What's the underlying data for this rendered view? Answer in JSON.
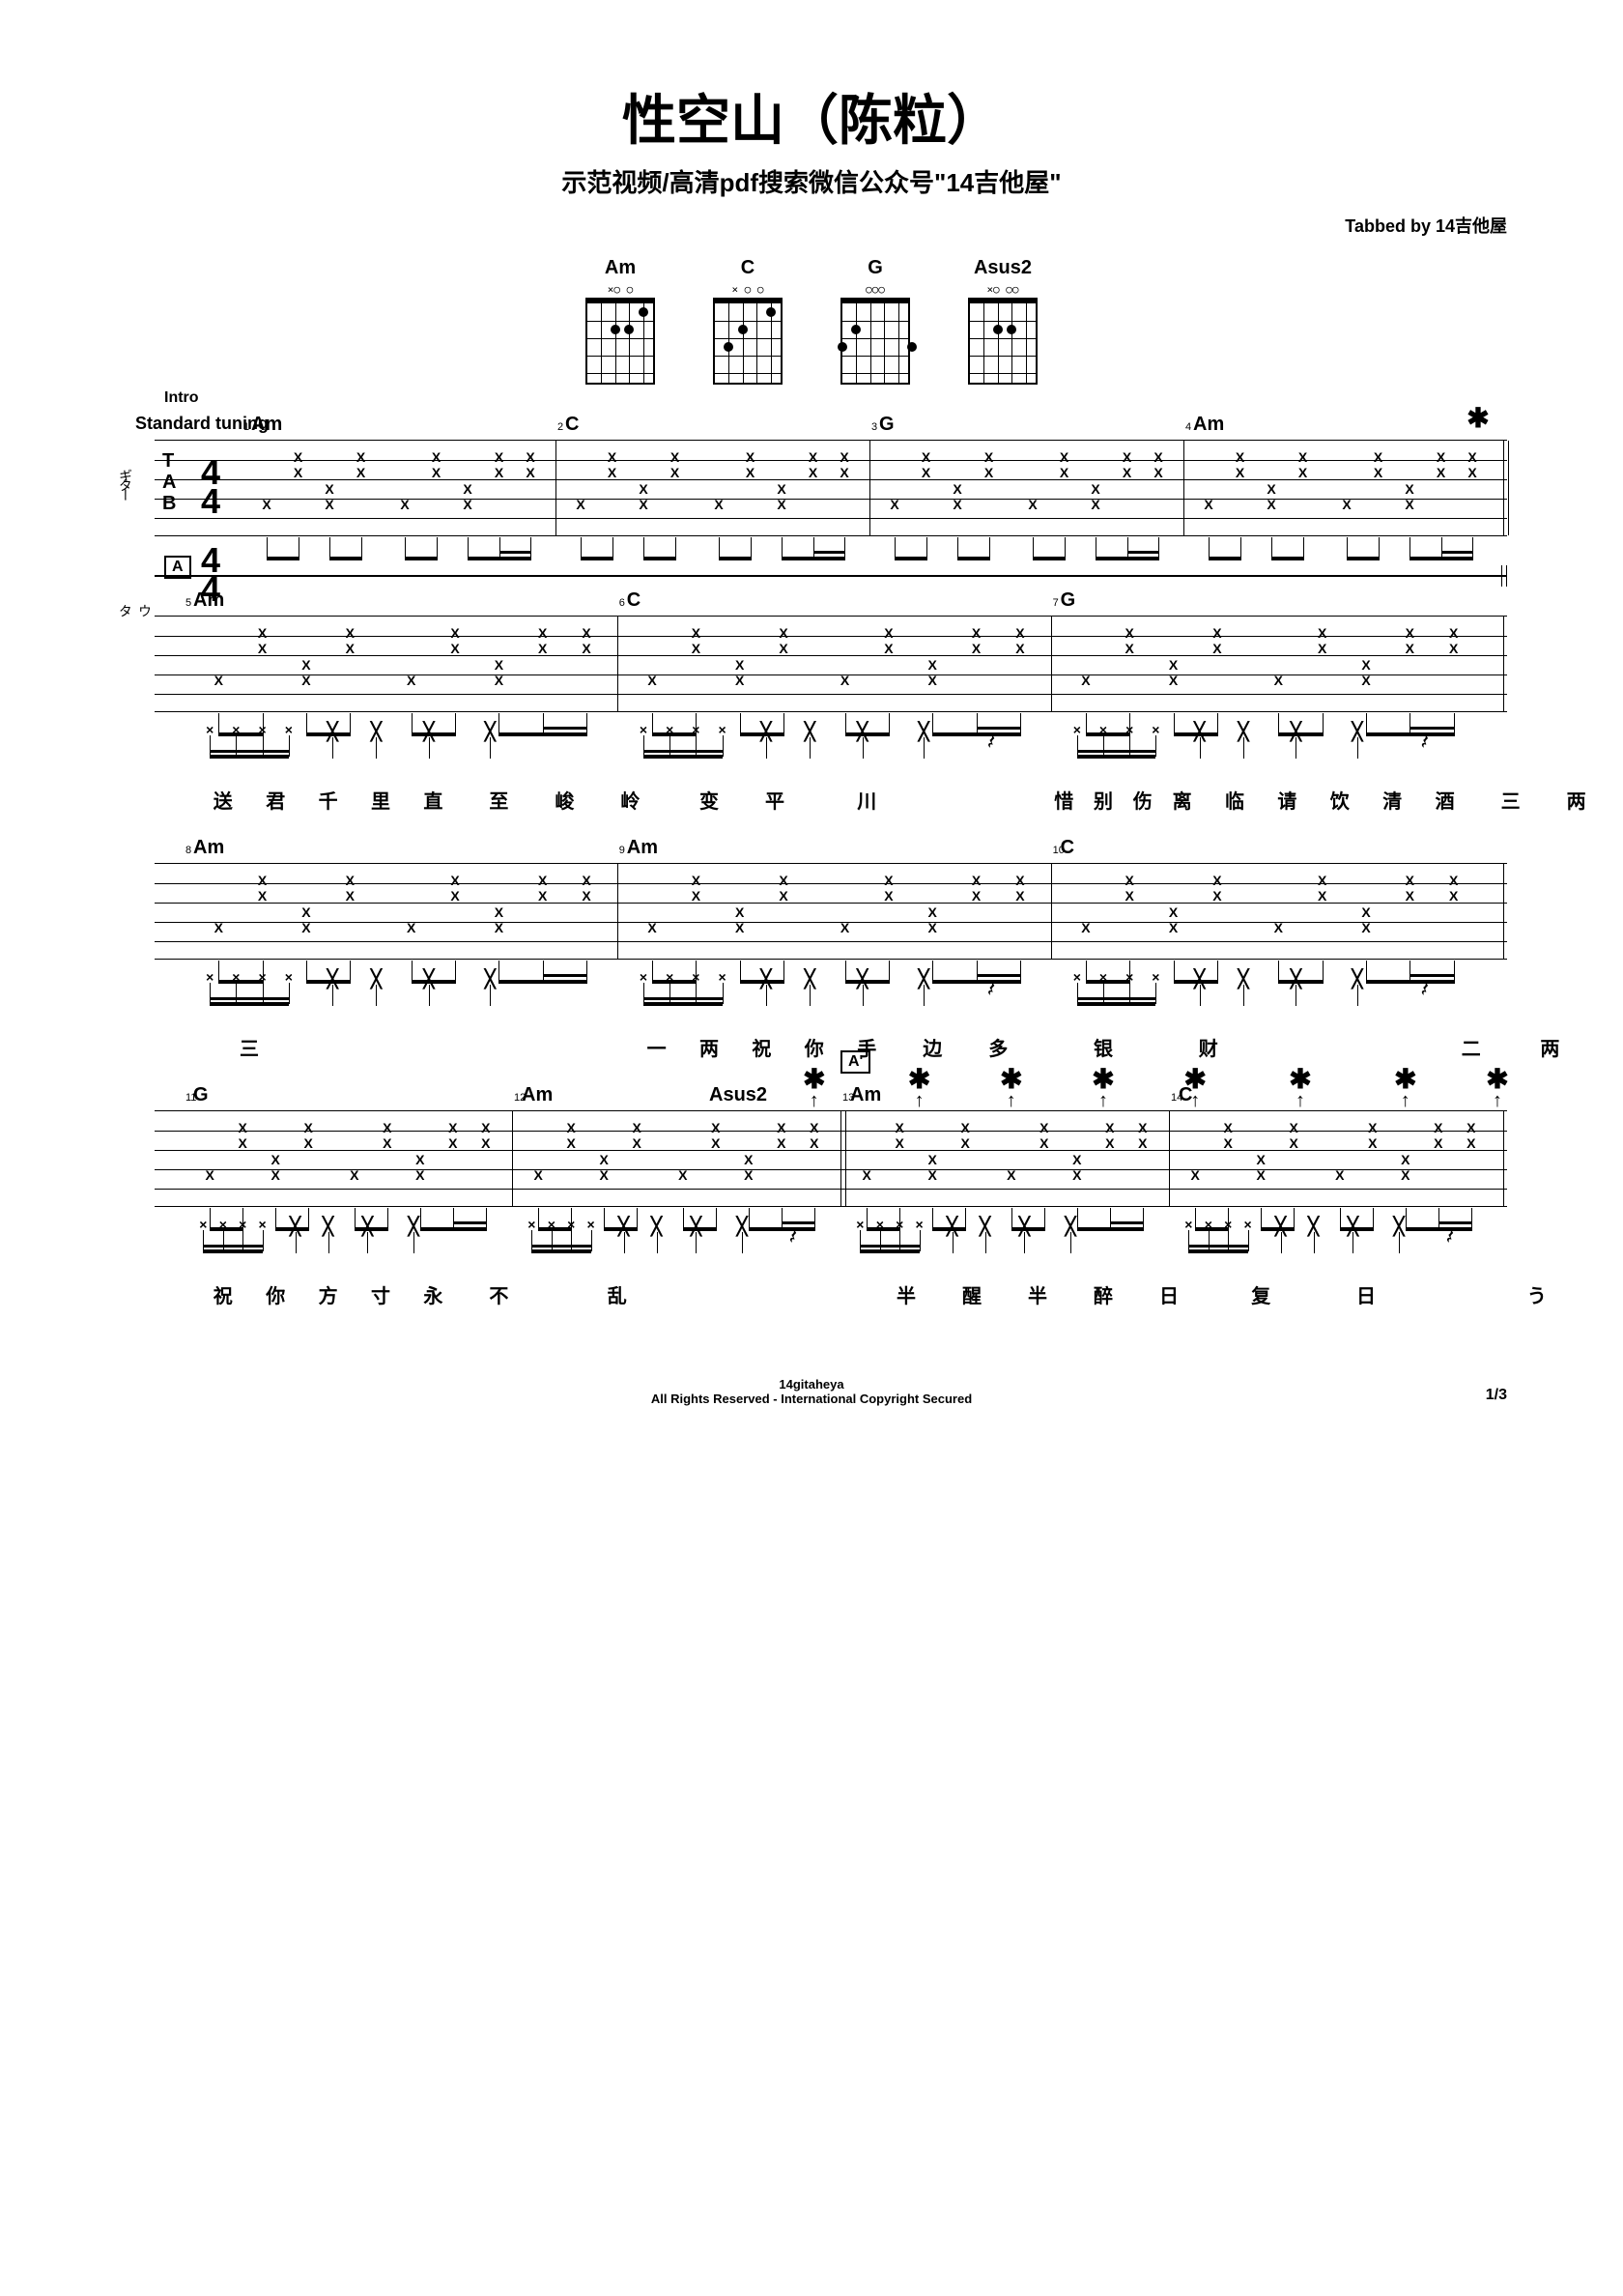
{
  "title": "性空山（陈粒）",
  "subtitle": "示范视频/高清pdf搜索微信公众号\"14吉他屋\"",
  "tabbed_by": "Tabbed by 14吉他屋",
  "tuning": "Standard tuning",
  "intro_label": "Intro",
  "instr_guitar": "ギター",
  "instr_vocal": "ウタ",
  "timesig_top": "4",
  "timesig_bot": "4",
  "tab_clef": "T\nA\nB",
  "chords": [
    {
      "name": "Am",
      "top": "×○    ○",
      "dots": [
        [
          1,
          2
        ],
        [
          2,
          4
        ],
        [
          2,
          3
        ]
      ]
    },
    {
      "name": "C",
      "top": "×    ○  ○",
      "dots": [
        [
          1,
          2
        ],
        [
          2,
          4
        ],
        [
          3,
          5
        ]
      ]
    },
    {
      "name": "G",
      "top": "      ○○○",
      "dots": [
        [
          2,
          5
        ],
        [
          3,
          6
        ],
        [
          3,
          1
        ]
      ]
    },
    {
      "name": "Asus2",
      "top": "×○    ○○",
      "dots": [
        [
          2,
          4
        ],
        [
          2,
          3
        ]
      ]
    }
  ],
  "systems": [
    {
      "section": "Intro",
      "has_vocal": false,
      "bars": [
        {
          "num": 1,
          "chord": "Am",
          "pos": 0
        },
        {
          "num": 2,
          "chord": "C",
          "pos": 0.25
        },
        {
          "num": 3,
          "chord": "G",
          "pos": 0.5
        },
        {
          "num": 4,
          "chord": "Am",
          "pos": 0.75
        }
      ],
      "end_dbl": true,
      "asterisk_end": true
    },
    {
      "section_box": "A",
      "has_vocal": true,
      "bars": [
        {
          "num": 5,
          "chord": "Am",
          "pos": 0
        },
        {
          "num": 6,
          "chord": "C",
          "pos": 0.33
        },
        {
          "num": 7,
          "chord": "G",
          "pos": 0.66
        }
      ],
      "lyrics": [
        {
          "t": "送",
          "x": 0.03
        },
        {
          "t": "君",
          "x": 0.07
        },
        {
          "t": "千",
          "x": 0.11
        },
        {
          "t": "里",
          "x": 0.15
        },
        {
          "t": "直",
          "x": 0.19
        },
        {
          "t": "至",
          "x": 0.24
        },
        {
          "t": "峻",
          "x": 0.29
        },
        {
          "t": "岭",
          "x": 0.34
        },
        {
          "t": "变",
          "x": 0.4
        },
        {
          "t": "平",
          "x": 0.45
        },
        {
          "t": "川",
          "x": 0.52
        },
        {
          "t": "惜",
          "x": 0.67
        },
        {
          "t": "别",
          "x": 0.7
        },
        {
          "t": "伤",
          "x": 0.73
        },
        {
          "t": "离",
          "x": 0.76
        },
        {
          "t": "临",
          "x": 0.8
        },
        {
          "t": "请",
          "x": 0.84
        },
        {
          "t": "饮",
          "x": 0.88
        },
        {
          "t": "清",
          "x": 0.92
        },
        {
          "t": "酒",
          "x": 0.96
        },
        {
          "t": "三",
          "x": 1.01
        },
        {
          "t": "两",
          "x": 1.06
        }
      ]
    },
    {
      "has_vocal": true,
      "bars": [
        {
          "num": 8,
          "chord": "Am",
          "pos": 0
        },
        {
          "num": 9,
          "chord": "Am",
          "pos": 0.33
        },
        {
          "num": 10,
          "chord": "C",
          "pos": 0.66
        }
      ],
      "lyrics": [
        {
          "t": "三",
          "x": 0.05
        },
        {
          "t": "一",
          "x": 0.36
        },
        {
          "t": "两",
          "x": 0.4
        },
        {
          "t": "祝",
          "x": 0.44
        },
        {
          "t": "你",
          "x": 0.48
        },
        {
          "t": "手",
          "x": 0.52
        },
        {
          "t": "边",
          "x": 0.57
        },
        {
          "t": "多",
          "x": 0.62
        },
        {
          "t": "银",
          "x": 0.7
        },
        {
          "t": "财",
          "x": 0.78
        },
        {
          "t": "二",
          "x": 0.98
        },
        {
          "t": "两",
          "x": 1.04
        }
      ]
    },
    {
      "has_vocal": true,
      "section_box_mid": "A'",
      "section_box_mid_pos": 0.5,
      "asterisks": [
        0.48,
        0.56,
        0.63,
        0.7,
        0.77,
        0.85,
        0.93,
        1.0
      ],
      "bars": [
        {
          "num": 11,
          "chord": "G",
          "pos": 0
        },
        {
          "num": 12,
          "chord": "Am",
          "pos": 0.25,
          "chord2": "Asus2",
          "chord2_pos": 0.4
        },
        {
          "num": 13,
          "chord": "Am",
          "pos": 0.5
        },
        {
          "num": 14,
          "chord": "C",
          "pos": 0.75
        }
      ],
      "lyrics": [
        {
          "t": "祝",
          "x": 0.03
        },
        {
          "t": "你",
          "x": 0.07
        },
        {
          "t": "方",
          "x": 0.11
        },
        {
          "t": "寸",
          "x": 0.15
        },
        {
          "t": "永",
          "x": 0.19
        },
        {
          "t": "不",
          "x": 0.24
        },
        {
          "t": "乱",
          "x": 0.33
        },
        {
          "t": "半",
          "x": 0.55
        },
        {
          "t": "醒",
          "x": 0.6
        },
        {
          "t": "半",
          "x": 0.65
        },
        {
          "t": "醉",
          "x": 0.7
        },
        {
          "t": "日",
          "x": 0.75
        },
        {
          "t": "复",
          "x": 0.82
        },
        {
          "t": "日",
          "x": 0.9
        },
        {
          "t": "う",
          "x": 1.03
        }
      ],
      "dbl_mid": 0.5
    }
  ],
  "footer1": "14gitaheya",
  "footer2": "All Rights Reserved - International Copyright Secured",
  "pagenum": "1/3"
}
